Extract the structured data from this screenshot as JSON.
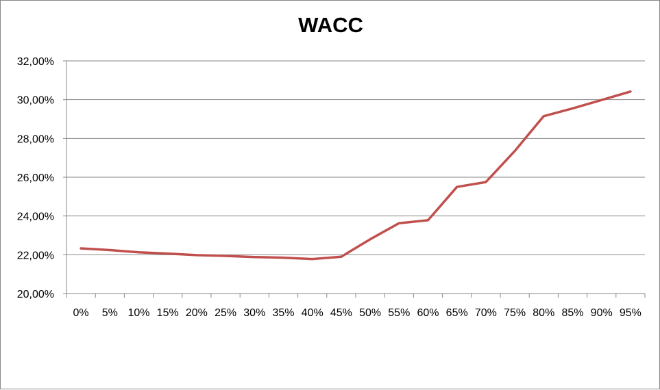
{
  "chart_data": {
    "type": "line",
    "title": "WACC",
    "xlabel": "",
    "ylabel": "",
    "categories": [
      "0%",
      "5%",
      "10%",
      "15%",
      "20%",
      "25%",
      "30%",
      "35%",
      "40%",
      "45%",
      "50%",
      "55%",
      "60%",
      "65%",
      "70%",
      "75%",
      "80%",
      "85%",
      "90%",
      "95%"
    ],
    "y_tick_labels": [
      "20,00%",
      "22,00%",
      "24,00%",
      "26,00%",
      "28,00%",
      "30,00%",
      "32,00%"
    ],
    "ylim": [
      20,
      32
    ],
    "y_tick_step": 2,
    "grid": true,
    "legend": "none",
    "series": [
      {
        "color": "#c0504d",
        "values": [
          22.33,
          22.24,
          22.13,
          22.06,
          21.98,
          21.94,
          21.88,
          21.85,
          21.78,
          21.9,
          22.8,
          23.63,
          23.78,
          25.5,
          25.75,
          27.35,
          29.15,
          29.55,
          29.98,
          30.42
        ]
      }
    ]
  }
}
